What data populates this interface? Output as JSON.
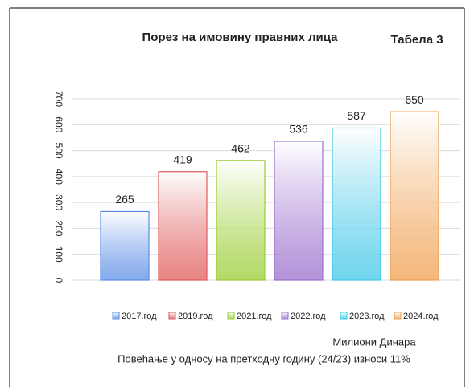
{
  "chart_data": {
    "type": "bar",
    "title": "Порез на имовину правних лица",
    "subtitle": "Табела 3",
    "categories": [
      "2017.год",
      "2019.год",
      "2021.год",
      "2022.год",
      "2023.год",
      "2024.год"
    ],
    "values": [
      265,
      419,
      462,
      536,
      587,
      650
    ],
    "colors": [
      "#5b8ee6",
      "#e05a5a",
      "#9acd32",
      "#9b6fce",
      "#40c8e8",
      "#f0a050"
    ],
    "ylim": [
      0,
      700
    ],
    "yticks": [
      0,
      100,
      200,
      300,
      400,
      500,
      600,
      700
    ],
    "grid": true,
    "unit_note": "Милиони Динара",
    "footnote": "Повећање у односу на претходну годину (24/23) износи 11%"
  }
}
